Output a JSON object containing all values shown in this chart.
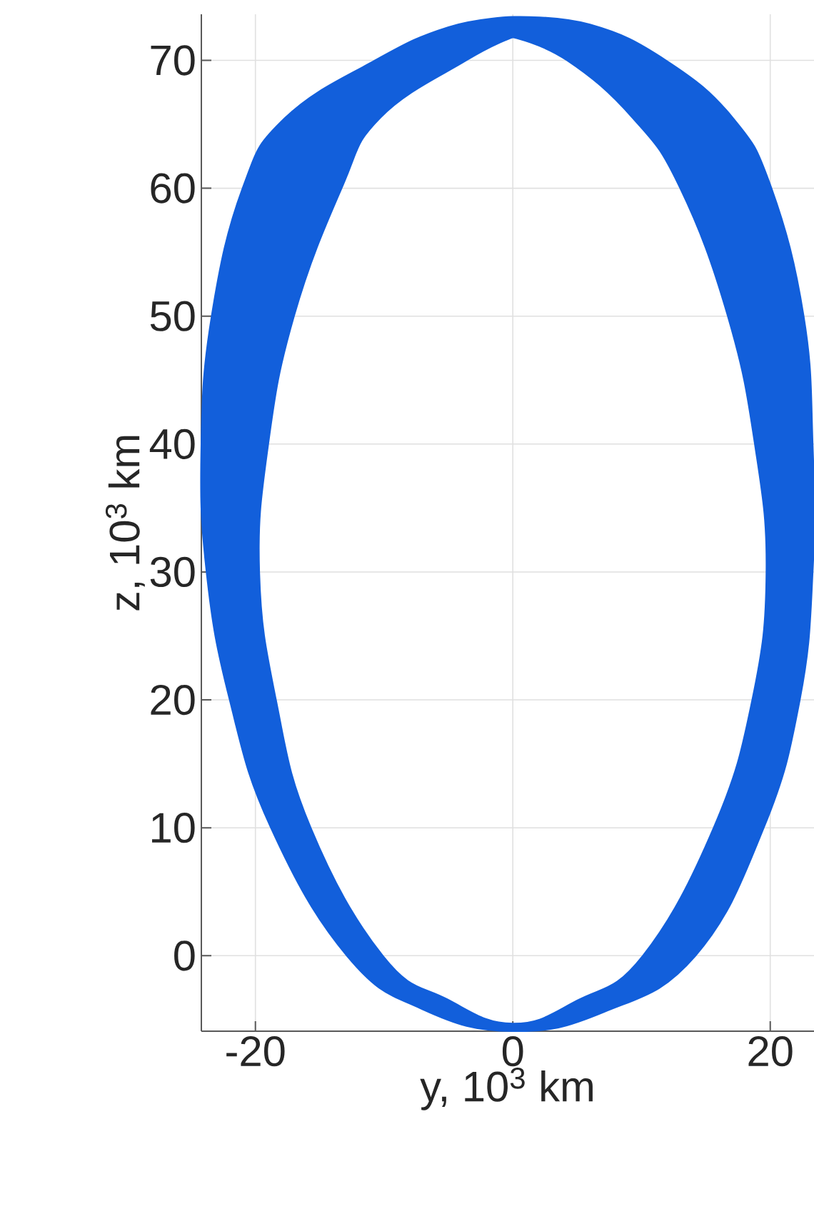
{
  "chart_data": {
    "type": "area",
    "xlabel": "y, 10$^{3}$ km",
    "ylabel": "z, 10$^{3}$ km",
    "xlim": [
      -24.2,
      23.4
    ],
    "ylim": [
      -5.9,
      73.6
    ],
    "xticks": [
      -20,
      0,
      20
    ],
    "yticks": [
      0,
      10,
      20,
      30,
      40,
      50,
      60,
      70
    ],
    "grid": true,
    "series": [
      {
        "color": "#125fdb",
        "x": [
          0,
          6,
          11.9,
          17.1,
          20.1,
          22.6,
          23.3,
          23.3,
          22.3,
          19.5,
          14.2,
          7.1,
          0,
          -7,
          -12.9,
          -18.8,
          -22,
          -23.8,
          -24.2,
          -23.4,
          -21,
          -17.7,
          -10.7,
          -5,
          0,
          null,
          0,
          4.2,
          9.3,
          13,
          16.7,
          18.8,
          19.7,
          18.6,
          15.6,
          10.1,
          5,
          0,
          -5.1,
          -10.1,
          -15.7,
          -18.4,
          -19.7,
          -19,
          -17,
          -13.3,
          -10.3,
          -3.6,
          0
        ],
        "values": [
          73.4,
          72.8,
          70,
          65.5,
          60,
          50,
          40,
          30,
          20,
          10,
          0,
          -4.4,
          -5.9,
          -4.2,
          0,
          10,
          20,
          30,
          40,
          50,
          60,
          65.5,
          70,
          72.6,
          73.4,
          null,
          71.8,
          70,
          65.5,
          60,
          50,
          40,
          30,
          20,
          10,
          0,
          -3.5,
          -5.3,
          -3.4,
          0,
          10,
          20,
          30,
          40,
          50,
          60,
          65.5,
          70,
          71.8
        ]
      }
    ]
  }
}
